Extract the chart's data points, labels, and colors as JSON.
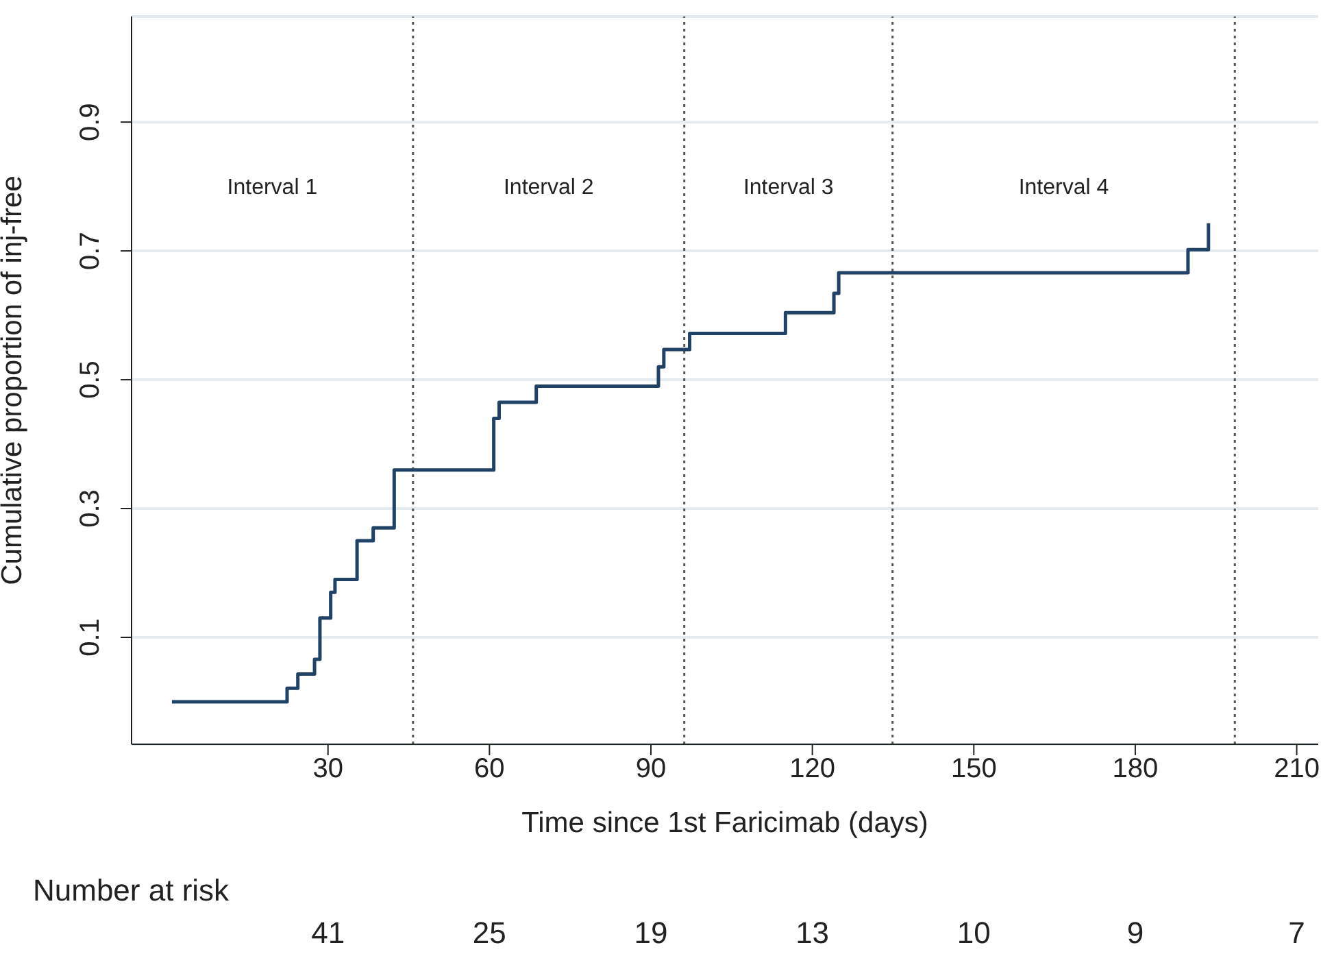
{
  "chart_data": {
    "type": "step",
    "xlabel": "Time since 1st Faricimab  (days)",
    "ylabel": "Cumulative proportion of inj-free",
    "x": [
      1,
      22.4,
      24.4,
      27.5,
      28.5,
      30.5,
      31.3,
      35.4,
      38.4,
      42.3,
      60.8,
      61.8,
      68.7,
      91.4,
      92.4,
      97.2,
      115,
      124,
      124.9,
      189.8,
      193.6
    ],
    "series": [
      {
        "color": "#1f4266",
        "values": [
          0,
          0.021,
          0.043,
          0.066,
          0.13,
          0.17,
          0.19,
          0.25,
          0.27,
          0.36,
          0.44,
          0.465,
          0.49,
          0.52,
          0.547,
          0.572,
          0.604,
          0.634,
          0.666,
          0.702,
          0.743
        ]
      }
    ],
    "xlim": [
      -6.5,
      214
    ],
    "xticks": [
      30,
      60,
      90,
      120,
      150,
      180,
      210
    ],
    "ylim": [
      -0.066,
      1.064
    ],
    "yticks": [
      0.1,
      0.3,
      0.5,
      0.7,
      0.9
    ],
    "grid": "y",
    "marker": "none",
    "line_style": "solid",
    "legend": false,
    "ref_lines": [
      {
        "axis": "x",
        "value": 45.8,
        "color": "#555555",
        "line_style": "dotted"
      },
      {
        "axis": "x",
        "value": 96.2,
        "color": "#555555",
        "line_style": "dotted"
      },
      {
        "axis": "x",
        "value": 134.9,
        "color": "#555555",
        "line_style": "dotted"
      },
      {
        "axis": "x",
        "value": 198.5,
        "color": "#555555",
        "line_style": "dotted"
      }
    ],
    "annotations": [
      "Interval 1",
      "Interval 2",
      "Interval 3",
      "Interval 4",
      "Number at risk",
      "41",
      "25",
      "19",
      "13",
      "10",
      "9",
      "7"
    ]
  }
}
